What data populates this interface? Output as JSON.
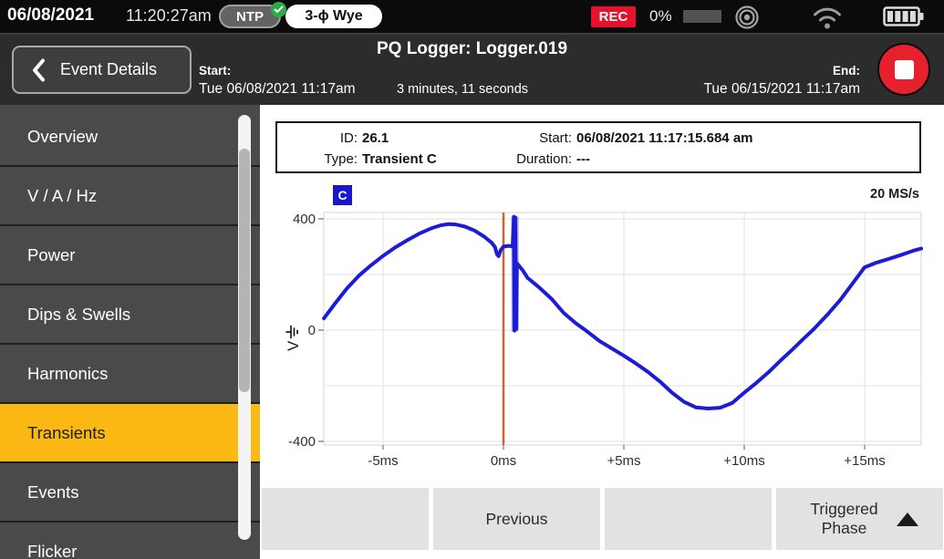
{
  "status_bar": {
    "date": "06/08/2021",
    "time": "11:20:27am",
    "ntp_label": "NTP",
    "wiring_config": "3-ϕ Wye",
    "rec_label": "REC",
    "memory_pct": "0%"
  },
  "header": {
    "back_label": "Event Details",
    "title": "PQ Logger: Logger.019",
    "start_label": "Start:",
    "start_value": "Tue 06/08/2021 11:17am",
    "duration": "3 minutes, 11 seconds",
    "end_label": "End:",
    "end_value": "Tue 06/15/2021 11:17am"
  },
  "sidebar": {
    "items": [
      {
        "label": "Overview",
        "selected": false
      },
      {
        "label": "V / A / Hz",
        "selected": false
      },
      {
        "label": "Power",
        "selected": false
      },
      {
        "label": "Dips & Swells",
        "selected": false
      },
      {
        "label": "Harmonics",
        "selected": false
      },
      {
        "label": "Transients",
        "selected": true
      },
      {
        "label": "Events",
        "selected": false
      },
      {
        "label": "Flicker",
        "selected": false
      }
    ]
  },
  "event_info": {
    "id_label": "ID:",
    "id_value": "26.1",
    "start_label": "Start:",
    "start_value": "06/08/2021 11:17:15.684 am",
    "type_label": "Type:",
    "type_value": "Transient C",
    "duration_label": "Duration:",
    "duration_value": "---"
  },
  "chart": {
    "phase_badge": "C",
    "sample_rate": "20 MS/s",
    "ylabel": "V",
    "y_ticks": [
      {
        "v": 400,
        "label": "400"
      },
      {
        "v": 0,
        "label": "0"
      },
      {
        "v": -400,
        "label": "-400"
      }
    ],
    "x_ticks": [
      {
        "t": -5,
        "label": "-5ms"
      },
      {
        "t": 0,
        "label": "0ms"
      },
      {
        "t": 5,
        "label": "+5ms"
      },
      {
        "t": 10,
        "label": "+10ms"
      },
      {
        "t": 15,
        "label": "+15ms"
      }
    ],
    "colors": {
      "trace": "#1c1cd6",
      "transient_band": "#8a8af0",
      "trigger": "#c4673e",
      "phase_badge_bg": "#1717cc",
      "selected_tab": "#fcb813",
      "rec": "#e8112d",
      "grid": "#ebebeb"
    }
  },
  "chart_data": {
    "type": "line",
    "x_unit": "ms",
    "y_unit": "V",
    "x_range": [
      -7.46,
      17.35
    ],
    "y_range": [
      -420,
      425
    ],
    "x_grid_ms": [
      -5,
      0,
      5,
      10,
      15
    ],
    "y_grid_v": [
      400,
      200,
      0,
      -200,
      -400
    ],
    "trigger_time_ms": 0,
    "transient": {
      "time_ms": 0.48,
      "v_max": 408,
      "v_min": -5
    },
    "series": [
      {
        "name": "Phase C voltage",
        "points": [
          [
            -7.46,
            42
          ],
          [
            -7,
            95
          ],
          [
            -6.5,
            150
          ],
          [
            -6,
            196
          ],
          [
            -5.5,
            233
          ],
          [
            -5,
            267
          ],
          [
            -4.5,
            297
          ],
          [
            -4,
            323
          ],
          [
            -3.5,
            347
          ],
          [
            -3,
            366
          ],
          [
            -2.6,
            377
          ],
          [
            -2.3,
            381
          ],
          [
            -2,
            380
          ],
          [
            -1.6,
            372
          ],
          [
            -1.2,
            358
          ],
          [
            -0.8,
            336
          ],
          [
            -0.5,
            315
          ],
          [
            -0.35,
            298
          ],
          [
            -0.27,
            272
          ],
          [
            -0.2,
            266
          ],
          [
            -0.12,
            287
          ],
          [
            0,
            300
          ],
          [
            0.2,
            303
          ],
          [
            0.38,
            301
          ],
          [
            0.43,
            408
          ],
          [
            0.46,
            -2
          ],
          [
            0.49,
            405
          ],
          [
            0.53,
            5
          ],
          [
            0.56,
            240
          ],
          [
            0.8,
            215
          ],
          [
            1,
            188
          ],
          [
            1.5,
            152
          ],
          [
            2,
            112
          ],
          [
            2.5,
            62
          ],
          [
            3,
            25
          ],
          [
            3.4,
            0
          ],
          [
            4,
            -40
          ],
          [
            4.5,
            -66
          ],
          [
            5,
            -92
          ],
          [
            5.5,
            -120
          ],
          [
            6,
            -150
          ],
          [
            6.5,
            -185
          ],
          [
            7,
            -225
          ],
          [
            7.5,
            -258
          ],
          [
            8,
            -278
          ],
          [
            8.5,
            -282
          ],
          [
            9,
            -279
          ],
          [
            9.5,
            -262
          ],
          [
            10,
            -225
          ],
          [
            10.5,
            -190
          ],
          [
            11,
            -152
          ],
          [
            11.5,
            -110
          ],
          [
            12,
            -70
          ],
          [
            12.5,
            -28
          ],
          [
            12.9,
            5
          ],
          [
            13.5,
            60
          ],
          [
            14,
            110
          ],
          [
            14.5,
            168
          ],
          [
            15,
            226
          ],
          [
            15.5,
            243
          ],
          [
            16,
            256
          ],
          [
            16.5,
            270
          ],
          [
            17,
            285
          ],
          [
            17.35,
            293
          ]
        ]
      }
    ]
  },
  "footer": {
    "buttons": [
      "",
      "Previous",
      "",
      "Triggered Phase"
    ]
  }
}
